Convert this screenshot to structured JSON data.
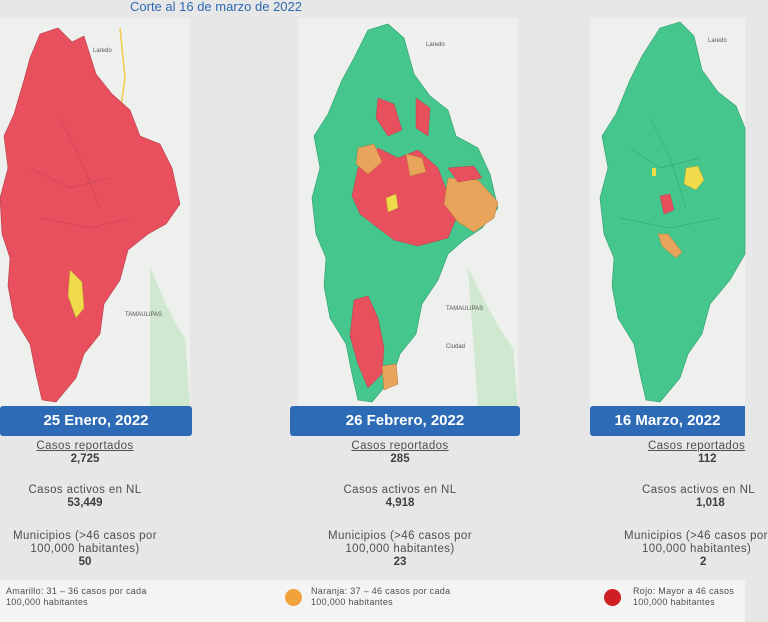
{
  "header": {
    "text": "Corte al 16 de marzo de 2022"
  },
  "colors": {
    "red": "#e8505e",
    "green": "#45c68d",
    "orange": "#e9a45c",
    "yellow": "#f0dc4a",
    "banner": "#2d6bb6"
  },
  "map_labels": {
    "laredo": "Laredo",
    "tamaulipas": "TAMAULIPAS",
    "ciudad": "Ciudad"
  },
  "panels": [
    {
      "date": "25 Enero, 2022",
      "reported_label": "Casos reportados",
      "reported": "2,725",
      "active_label": "Casos activos en NL",
      "active": "53,449",
      "municipios_label_1": "Municipios (>46 casos por",
      "municipios_label_2": "100,000 habitantes)",
      "municipios": "50"
    },
    {
      "date": "26 Febrero, 2022",
      "reported_label": "Casos reportados",
      "reported": "285",
      "active_label": "Casos activos en NL",
      "active": "4,918",
      "municipios_label_1": "Municipios (>46 casos por",
      "municipios_label_2": "100,000 habitantes)",
      "municipios": "23"
    },
    {
      "date": "16 Marzo, 2022",
      "reported_label": "Casos reportados",
      "reported": "112",
      "active_label": "Casos activos en NL",
      "active": "1,018",
      "municipios_label_1": "Municipios (>46 casos por",
      "municipios_label_2": "100,000 habitantes)",
      "municipios": "2"
    }
  ],
  "legend": [
    {
      "line1": "Amarillo: 31 – 36 casos por cada",
      "line2": "100,000 habitantes",
      "color": "#f0dc4a"
    },
    {
      "line1": "Naranja: 37 – 46 casos por cada",
      "line2": "100,000 habitantes",
      "color": "#f0a23c"
    },
    {
      "line1": "Rojo: Mayor a 46 casos",
      "line2": "100,000 habitantes",
      "color": "#cf1f25"
    }
  ]
}
